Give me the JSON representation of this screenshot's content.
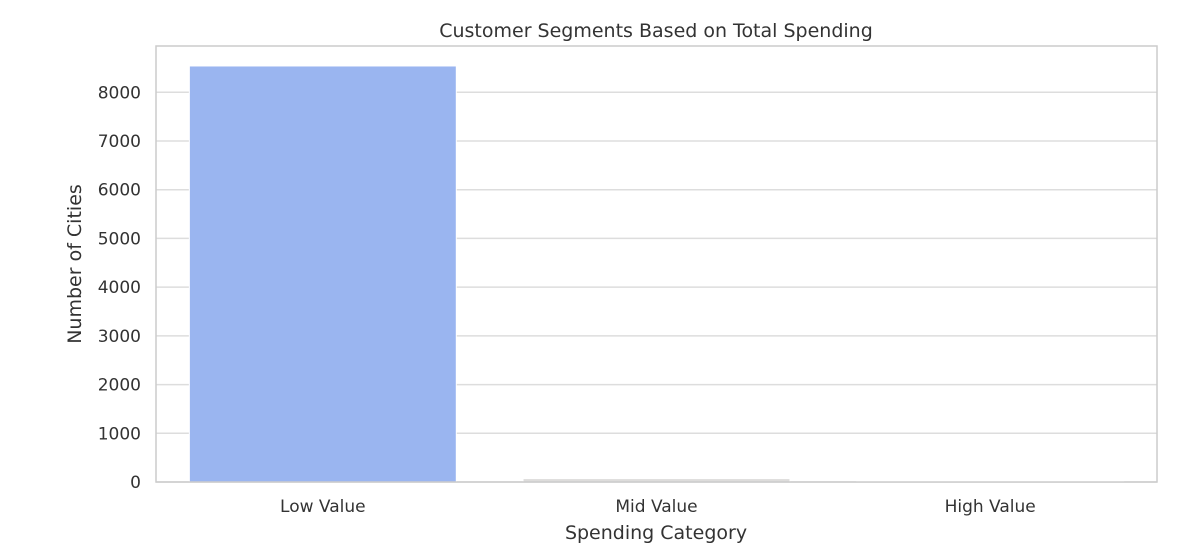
{
  "chart_data": {
    "type": "bar",
    "title": "Customer Segments Based on Total Spending",
    "xlabel": "Spending Category",
    "ylabel": "Number of Cities",
    "categories": [
      "Low Value",
      "Mid Value",
      "High Value"
    ],
    "values": [
      8540,
      70,
      5
    ],
    "ylim": [
      0,
      8950
    ],
    "yticks": [
      0,
      1000,
      2000,
      3000,
      4000,
      5000,
      6000,
      7000,
      8000
    ],
    "grid": true,
    "colors": {
      "bars": [
        "#9ab5f0",
        "#dddcdb",
        "#f2c3ad"
      ],
      "grid": "#dddddd",
      "frame": "#cccccc"
    }
  }
}
